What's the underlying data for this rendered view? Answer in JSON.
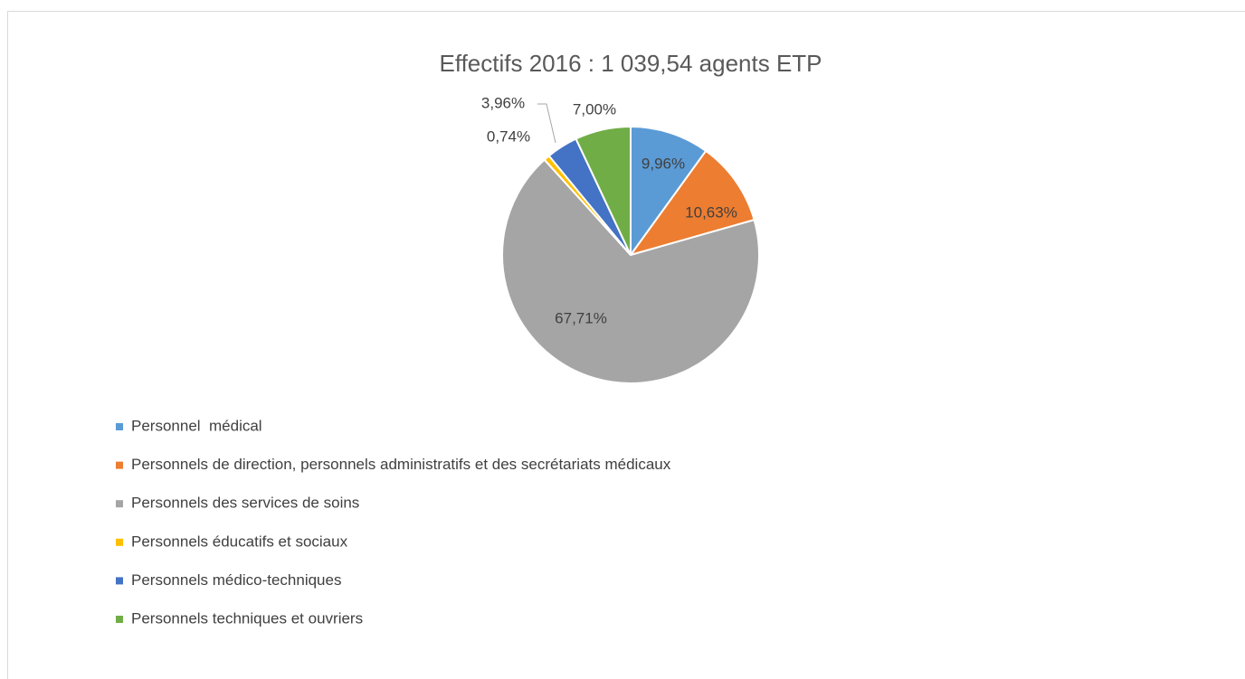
{
  "chart_data": {
    "type": "pie",
    "title": "Effectifs 2016 : 1 039,54 agents ETP",
    "categories": [
      "Personnel  médical",
      "Personnels de direction, personnels administratifs et des secrétariats médicaux",
      "Personnels des services de soins",
      "Personnels éducatifs et sociaux",
      "Personnels médico-techniques",
      "Personnels techniques et ouvriers"
    ],
    "values": [
      9.96,
      10.63,
      67.71,
      0.74,
      3.96,
      7.0
    ],
    "value_labels": [
      "9,96%",
      "10,63%",
      "67,71%",
      "0,74%",
      "3,96%",
      "7,00%"
    ],
    "colors": [
      "#5b9bd5",
      "#ed7d31",
      "#a5a5a5",
      "#ffc000",
      "#4472c4",
      "#70ad47"
    ],
    "legend": "bottom-left"
  }
}
